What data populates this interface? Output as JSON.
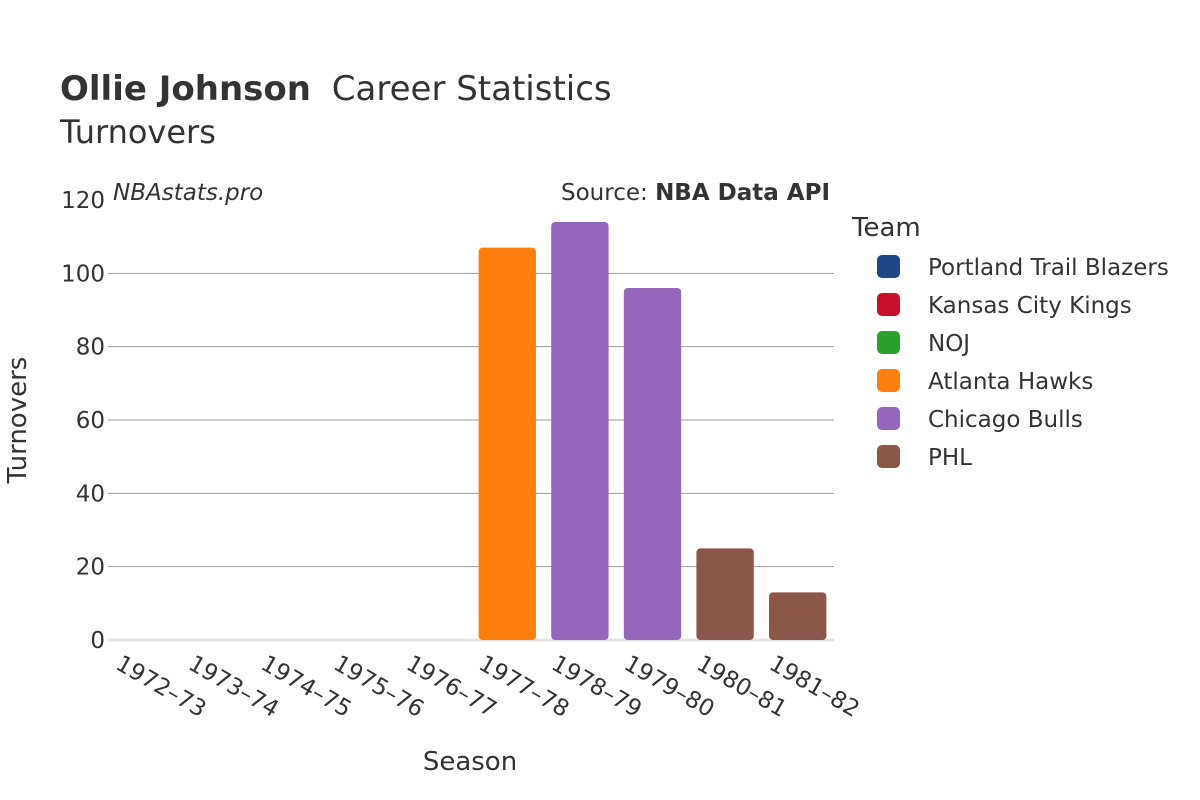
{
  "chart_data": {
    "type": "bar",
    "title_player": "Ollie Johnson",
    "title_suffix": "Career Statistics",
    "subtitle": "Turnovers",
    "watermark": "NBAstats.pro",
    "source_prefix": "Source: ",
    "source_name": "NBA Data API",
    "xlabel": "Season",
    "ylabel": "Turnovers",
    "ylim": [
      0,
      120
    ],
    "yticks": [
      0,
      20,
      40,
      60,
      80,
      100,
      120
    ],
    "categories": [
      "1972–73",
      "1973–74",
      "1974–75",
      "1975–76",
      "1976–77",
      "1977–78",
      "1978–79",
      "1979–80",
      "1980–81",
      "1981–82"
    ],
    "values": [
      0,
      0,
      0,
      0,
      0,
      107,
      114,
      96,
      25,
      13
    ],
    "teams": [
      "Portland Trail Blazers",
      "Portland Trail Blazers",
      "Portland Trail Blazers",
      "Kansas City Kings",
      "NOJ",
      "Atlanta Hawks",
      "Chicago Bulls",
      "Chicago Bulls",
      "PHL",
      "PHL"
    ],
    "legend_title": "Team",
    "legend": [
      {
        "name": "Portland Trail Blazers",
        "color": "#1f4788"
      },
      {
        "name": "Kansas City Kings",
        "color": "#c8102e"
      },
      {
        "name": "NOJ",
        "color": "#2ca02c"
      },
      {
        "name": "Atlanta Hawks",
        "color": "#ff7f0e"
      },
      {
        "name": "Chicago Bulls",
        "color": "#9467bd"
      },
      {
        "name": "PHL",
        "color": "#8c564b"
      }
    ]
  }
}
